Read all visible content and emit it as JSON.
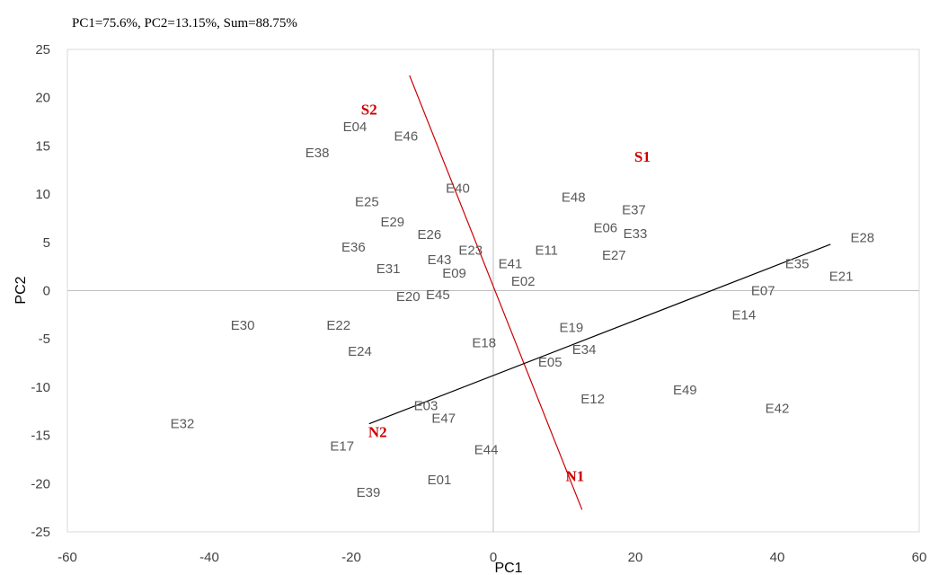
{
  "chart_data": {
    "type": "scatter",
    "title": "PC1=75.6%, PC2=13.15%, Sum=88.75%",
    "xlabel": "PC1",
    "ylabel": "PC2",
    "xlim": [
      -60,
      60
    ],
    "ylim": [
      -25,
      25
    ],
    "xticks": [
      -60,
      -40,
      -20,
      0,
      20,
      40,
      60
    ],
    "yticks": [
      -25,
      -20,
      -15,
      -10,
      -5,
      0,
      5,
      10,
      15,
      20,
      25
    ],
    "grid": false,
    "entries": [
      {
        "label": "E04",
        "x": -19.5,
        "y": 17.0
      },
      {
        "label": "E46",
        "x": -12.3,
        "y": 16.0
      },
      {
        "label": "E38",
        "x": -24.8,
        "y": 14.3
      },
      {
        "label": "E40",
        "x": -5.0,
        "y": 10.6
      },
      {
        "label": "E48",
        "x": 11.3,
        "y": 9.7
      },
      {
        "label": "E37",
        "x": 19.8,
        "y": 8.4
      },
      {
        "label": "E25",
        "x": -17.8,
        "y": 9.2
      },
      {
        "label": "E29",
        "x": -14.2,
        "y": 7.1
      },
      {
        "label": "E06",
        "x": 15.8,
        "y": 6.5
      },
      {
        "label": "E33",
        "x": 20.0,
        "y": 5.9
      },
      {
        "label": "E26",
        "x": -9.0,
        "y": 5.8
      },
      {
        "label": "E36",
        "x": -19.7,
        "y": 4.5
      },
      {
        "label": "E23",
        "x": -3.2,
        "y": 4.2
      },
      {
        "label": "E11",
        "x": 7.5,
        "y": 4.2
      },
      {
        "label": "E27",
        "x": 17.0,
        "y": 3.7
      },
      {
        "label": "E43",
        "x": -7.6,
        "y": 3.2
      },
      {
        "label": "E41",
        "x": 2.4,
        "y": 2.8
      },
      {
        "label": "E31",
        "x": -14.8,
        "y": 2.3
      },
      {
        "label": "E09",
        "x": -5.5,
        "y": 1.8
      },
      {
        "label": "E02",
        "x": 4.2,
        "y": 1.0
      },
      {
        "label": "E45",
        "x": -7.8,
        "y": -0.4
      },
      {
        "label": "E20",
        "x": -12.0,
        "y": -0.6
      },
      {
        "label": "E07",
        "x": 38.0,
        "y": 0.0
      },
      {
        "label": "E35",
        "x": 42.8,
        "y": 2.8
      },
      {
        "label": "E21",
        "x": 49.0,
        "y": 1.5
      },
      {
        "label": "E28",
        "x": 52.0,
        "y": 5.5
      },
      {
        "label": "E14",
        "x": 35.3,
        "y": -2.5
      },
      {
        "label": "E30",
        "x": -35.3,
        "y": -3.6
      },
      {
        "label": "E22",
        "x": -21.8,
        "y": -3.6
      },
      {
        "label": "E19",
        "x": 11.0,
        "y": -3.8
      },
      {
        "label": "E18",
        "x": -1.3,
        "y": -5.4
      },
      {
        "label": "E24",
        "x": -18.8,
        "y": -6.3
      },
      {
        "label": "E34",
        "x": 12.8,
        "y": -6.1
      },
      {
        "label": "E05",
        "x": 8.0,
        "y": -7.4
      },
      {
        "label": "E49",
        "x": 27.0,
        "y": -10.3
      },
      {
        "label": "E12",
        "x": 14.0,
        "y": -11.2
      },
      {
        "label": "E42",
        "x": 40.0,
        "y": -12.2
      },
      {
        "label": "E03",
        "x": -9.5,
        "y": -11.9
      },
      {
        "label": "E47",
        "x": -7.0,
        "y": -13.2
      },
      {
        "label": "E32",
        "x": -43.8,
        "y": -13.8
      },
      {
        "label": "E17",
        "x": -21.3,
        "y": -16.1
      },
      {
        "label": "E44",
        "x": -1.0,
        "y": -16.5
      },
      {
        "label": "E01",
        "x": -7.6,
        "y": -19.6
      },
      {
        "label": "E39",
        "x": -17.6,
        "y": -20.9
      }
    ],
    "testers": [
      {
        "label": "S1",
        "x": 21.0,
        "y": 13.9,
        "color": "#cc0000"
      },
      {
        "label": "S2",
        "x": -17.5,
        "y": 18.8,
        "color": "#cc0000"
      },
      {
        "label": "N1",
        "x": 11.5,
        "y": -19.2,
        "color": "#cc0000"
      },
      {
        "label": "N2",
        "x": -16.3,
        "y": -14.6,
        "color": "#cc0000"
      }
    ],
    "lines": [
      {
        "name": "S-N axis",
        "color": "#cc0000",
        "from": [
          -11.8,
          22.3
        ],
        "to": [
          12.5,
          -22.7
        ]
      },
      {
        "name": "N-S axis",
        "color": "#000000",
        "from": [
          -17.5,
          -13.8
        ],
        "to": [
          47.5,
          4.8
        ]
      }
    ]
  }
}
